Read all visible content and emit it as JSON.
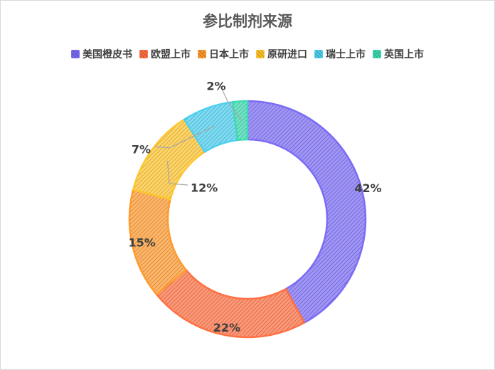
{
  "chart_data": {
    "type": "pie",
    "style": "donut",
    "title": "参比制剂来源",
    "legend_position": "top",
    "categories": [
      "美国橙皮书",
      "欧盟上市",
      "日本上市",
      "原研进口",
      "瑞士上市",
      "英国上市"
    ],
    "values": [
      42,
      22,
      15,
      12,
      7,
      2
    ],
    "labels": [
      "42%",
      "22%",
      "15%",
      "12%",
      "7%",
      "2%"
    ],
    "colors": [
      "#7B6CF6",
      "#FF7043",
      "#FF9A2E",
      "#FFC52E",
      "#4DD0F0",
      "#3DDBB0"
    ]
  }
}
